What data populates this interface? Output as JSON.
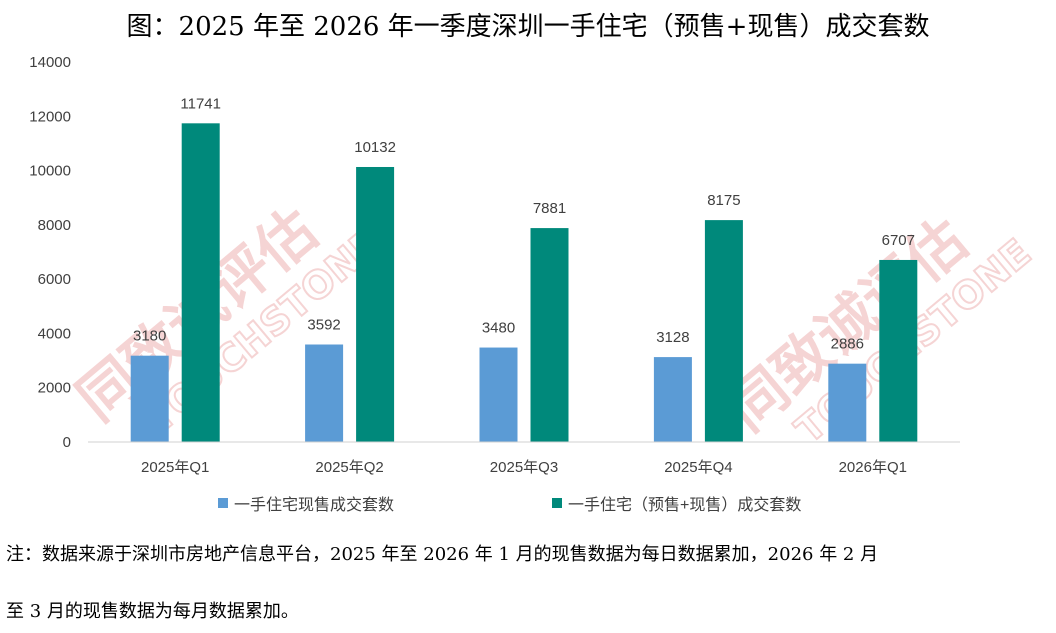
{
  "title": "图：2025 年至 2026 年一季度深圳一手住宅（预售+现售）成交套数",
  "watermark": {
    "cn": "同致诚评估",
    "en": "TOUCHSTONE",
    "color": "#f2c6c6"
  },
  "chart_data": {
    "type": "bar",
    "title": "图：2025 年至 2026 年一季度深圳一手住宅（预售+现售）成交套数",
    "categories": [
      "2025年Q1",
      "2025年Q2",
      "2025年Q3",
      "2025年Q4",
      "2026年Q1"
    ],
    "series": [
      {
        "name": "一手住宅现售成交套数",
        "color": "#5b9bd5",
        "values": [
          3180,
          3592,
          3480,
          3128,
          2886
        ]
      },
      {
        "name": "一手住宅（预售+现售）成交套数",
        "color": "#00897b",
        "values": [
          11741,
          10132,
          7881,
          8175,
          6707
        ]
      }
    ],
    "ylim": [
      0,
      14000
    ],
    "yticks": [
      0,
      2000,
      4000,
      6000,
      8000,
      10000,
      12000,
      14000
    ],
    "xlabel": "",
    "ylabel": "",
    "grid": false,
    "legend": "bottom"
  },
  "notes": {
    "line1": "注：数据来源于深圳市房地产信息平台，2025 年至 2026 年 1 月的现售数据为每日数据累加，2026 年 2 月",
    "line2": "至 3 月的现售数据为每月数据累加。"
  }
}
